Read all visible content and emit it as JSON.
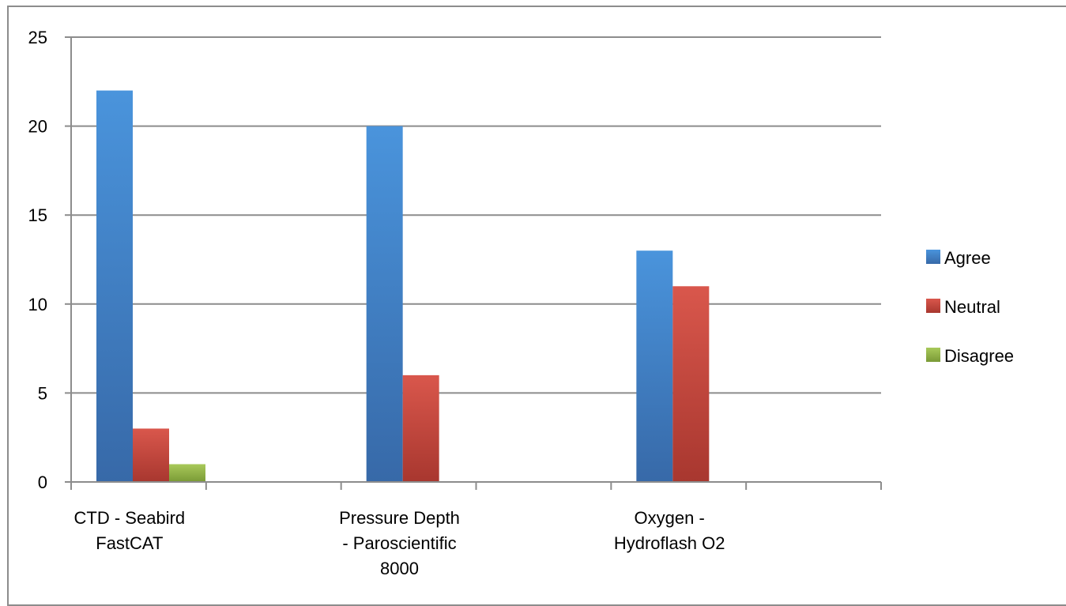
{
  "chart_data": {
    "type": "bar",
    "categories": [
      [
        "CTD - Seabird",
        "FastCAT"
      ],
      [
        "Pressure Depth",
        "- Paroscientific",
        "8000"
      ],
      [
        "Oxygen -",
        "Hydroflash O2"
      ]
    ],
    "series": [
      {
        "name": "Agree",
        "values": [
          22,
          20,
          13
        ]
      },
      {
        "name": "Neutral",
        "values": [
          3,
          6,
          11
        ]
      },
      {
        "name": "Disagree",
        "values": [
          1,
          0,
          0
        ]
      }
    ],
    "ylim": [
      0,
      25
    ],
    "yticks": [
      0,
      5,
      10,
      15,
      20,
      25
    ],
    "grid": true,
    "legend_position": "right",
    "colors": {
      "Agree": [
        "#4a94dc",
        "#3769a8"
      ],
      "Neutral": [
        "#d9574c",
        "#a8372f"
      ],
      "Disagree": [
        "#a8c95a",
        "#7a9a36"
      ]
    }
  }
}
